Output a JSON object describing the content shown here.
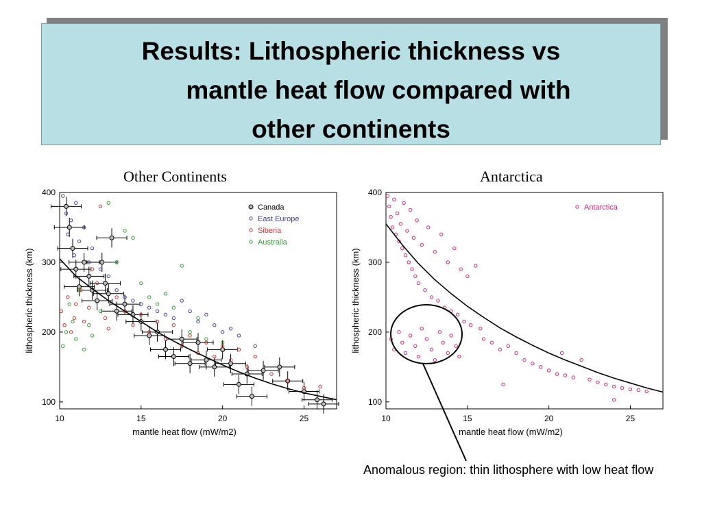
{
  "slide": {
    "title_lines": [
      "Results: Lithospheric thickness vs",
      "mantle heat flow compared with",
      "other continents"
    ],
    "left_label": "Other Continents",
    "right_label": "Antarctica",
    "annotation": "Anomalous region: thin lithosphere with low heat flow"
  },
  "chart_data": [
    {
      "type": "scatter",
      "title": "Other Continents",
      "xlabel": "mantle heat flow (mW/m2)",
      "ylabel": "lithospheric thickness (km)",
      "xlim": [
        10,
        27
      ],
      "ylim": [
        90,
        400
      ],
      "xticks": [
        10,
        15,
        20,
        25
      ],
      "yticks": [
        100,
        200,
        300,
        400
      ],
      "legend_position": "top-right",
      "series": [
        {
          "name": "Canada",
          "color": "#555555",
          "error_bars": true,
          "points": [
            [
              10.4,
              380
            ],
            [
              10.6,
              350
            ],
            [
              10.8,
              320
            ],
            [
              11.0,
              290
            ],
            [
              11.2,
              265
            ],
            [
              11.5,
              300
            ],
            [
              11.8,
              280
            ],
            [
              12.0,
              260
            ],
            [
              12.3,
              245
            ],
            [
              12.6,
              300
            ],
            [
              12.8,
              270
            ],
            [
              13.0,
              255
            ],
            [
              13.2,
              335
            ],
            [
              13.5,
              230
            ],
            [
              14.0,
              240
            ],
            [
              14.5,
              225
            ],
            [
              15.0,
              215
            ],
            [
              15.5,
              195
            ],
            [
              16.0,
              200
            ],
            [
              16.5,
              175
            ],
            [
              17.0,
              165
            ],
            [
              17.5,
              190
            ],
            [
              18.0,
              155
            ],
            [
              18.5,
              185
            ],
            [
              19.0,
              160
            ],
            [
              19.5,
              150
            ],
            [
              20.0,
              175
            ],
            [
              20.5,
              155
            ],
            [
              21.0,
              125
            ],
            [
              21.5,
              140
            ],
            [
              21.8,
              108
            ],
            [
              22.5,
              145
            ],
            [
              23.5,
              150
            ],
            [
              24.0,
              130
            ],
            [
              25.0,
              115
            ],
            [
              25.8,
              103
            ],
            [
              26.2,
              97
            ]
          ]
        },
        {
          "name": "East Europe",
          "color": "#4040a0",
          "error_bars": false,
          "points": [
            [
              10.2,
              395
            ],
            [
              10.4,
              370
            ],
            [
              10.5,
              340
            ],
            [
              10.7,
              360
            ],
            [
              10.9,
              310
            ],
            [
              11.0,
              385
            ],
            [
              11.2,
              330
            ],
            [
              11.5,
              350
            ],
            [
              11.8,
              300
            ],
            [
              12.0,
              320
            ],
            [
              12.5,
              290
            ],
            [
              13.0,
              280
            ],
            [
              13.5,
              260
            ],
            [
              14.0,
              250
            ],
            [
              14.5,
              245
            ],
            [
              15.0,
              240
            ],
            [
              15.5,
              235
            ],
            [
              16.0,
              230
            ],
            [
              16.5,
              225
            ],
            [
              17.0,
              220
            ],
            [
              17.5,
              245
            ],
            [
              18.0,
              230
            ],
            [
              18.5,
              215
            ],
            [
              19.0,
              225
            ],
            [
              19.5,
              210
            ],
            [
              20.0,
              200
            ],
            [
              20.5,
              205
            ],
            [
              21.0,
              195
            ],
            [
              22.0,
              180
            ]
          ]
        },
        {
          "name": "Siberia",
          "color": "#d03030",
          "error_bars": false,
          "points": [
            [
              10.1,
              230
            ],
            [
              10.3,
              210
            ],
            [
              10.5,
              250
            ],
            [
              10.7,
              200
            ],
            [
              10.9,
              220
            ],
            [
              11.0,
              240
            ],
            [
              11.3,
              260
            ],
            [
              11.5,
              215
            ],
            [
              11.8,
              235
            ],
            [
              12.0,
              290
            ],
            [
              12.3,
              270
            ],
            [
              12.5,
              380
            ],
            [
              12.8,
              220
            ],
            [
              13.0,
              205
            ],
            [
              13.5,
              250
            ],
            [
              14.0,
              230
            ],
            [
              14.5,
              210
            ],
            [
              15.0,
              225
            ],
            [
              15.5,
              200
            ],
            [
              16.0,
              215
            ],
            [
              16.5,
              190
            ],
            [
              17.0,
              210
            ],
            [
              17.5,
              180
            ],
            [
              18.0,
              195
            ],
            [
              18.5,
              170
            ],
            [
              19.0,
              185
            ],
            [
              19.5,
              165
            ],
            [
              20.0,
              180
            ],
            [
              20.5,
              160
            ],
            [
              21.0,
              175
            ],
            [
              21.5,
              150
            ],
            [
              22.0,
              165
            ],
            [
              23.0,
              140
            ],
            [
              24.0,
              130
            ],
            [
              25.0,
              120
            ],
            [
              26.0,
              122
            ]
          ]
        },
        {
          "name": "Australia",
          "color": "#30a030",
          "error_bars": false,
          "points": [
            [
              10.2,
              180
            ],
            [
              10.4,
              200
            ],
            [
              10.6,
              240
            ],
            [
              10.8,
              215
            ],
            [
              11.0,
              190
            ],
            [
              11.2,
              260
            ],
            [
              11.5,
              175
            ],
            [
              11.8,
              210
            ],
            [
              12.0,
              195
            ],
            [
              12.5,
              230
            ],
            [
              13.0,
              385
            ],
            [
              13.5,
              300
            ],
            [
              14.0,
              345
            ],
            [
              14.5,
              335
            ],
            [
              15.0,
              270
            ],
            [
              15.5,
              250
            ],
            [
              16.0,
              240
            ],
            [
              16.5,
              255
            ],
            [
              17.0,
              235
            ],
            [
              17.5,
              295
            ],
            [
              18.0,
              200
            ],
            [
              18.5,
              220
            ],
            [
              19.0,
              190
            ],
            [
              20.0,
              185
            ]
          ]
        }
      ],
      "fit_curve": [
        [
          10.0,
          305
        ],
        [
          11.0,
          280
        ],
        [
          12.0,
          262
        ],
        [
          13.0,
          245
        ],
        [
          14.0,
          230
        ],
        [
          15.0,
          215
        ],
        [
          16.0,
          200
        ],
        [
          17.0,
          187
        ],
        [
          18.0,
          175
        ],
        [
          19.0,
          164
        ],
        [
          20.0,
          153
        ],
        [
          21.0,
          143
        ],
        [
          22.0,
          134
        ],
        [
          23.0,
          126
        ],
        [
          24.0,
          119
        ],
        [
          25.0,
          113
        ],
        [
          26.0,
          108
        ],
        [
          27.0,
          103
        ]
      ]
    },
    {
      "type": "scatter",
      "title": "Antarctica",
      "xlabel": "mantle heat flow (mW/m2)",
      "ylabel": "lithospheric thickness (km)",
      "xlim": [
        10,
        27
      ],
      "ylim": [
        90,
        400
      ],
      "xticks": [
        10,
        15,
        20,
        25
      ],
      "yticks": [
        100,
        200,
        300,
        400
      ],
      "legend_position": "top-right",
      "series": [
        {
          "name": "Antarctica",
          "color": "#e0207a",
          "error_bars": false,
          "points": [
            [
              10.1,
              395
            ],
            [
              10.2,
              380
            ],
            [
              10.3,
              365
            ],
            [
              10.4,
              350
            ],
            [
              10.5,
              390
            ],
            [
              10.6,
              340
            ],
            [
              10.7,
              370
            ],
            [
              10.8,
              330
            ],
            [
              10.9,
              355
            ],
            [
              11.0,
              320
            ],
            [
              11.1,
              385
            ],
            [
              11.2,
              310
            ],
            [
              11.3,
              345
            ],
            [
              11.4,
              300
            ],
            [
              11.5,
              375
            ],
            [
              11.6,
              290
            ],
            [
              11.7,
              335
            ],
            [
              11.8,
              280
            ],
            [
              11.9,
              360
            ],
            [
              12.0,
              270
            ],
            [
              12.2,
              325
            ],
            [
              12.4,
              260
            ],
            [
              12.6,
              350
            ],
            [
              12.8,
              250
            ],
            [
              13.0,
              315
            ],
            [
              13.2,
              245
            ],
            [
              13.4,
              340
            ],
            [
              13.6,
              235
            ],
            [
              13.8,
              300
            ],
            [
              14.0,
              230
            ],
            [
              14.2,
              320
            ],
            [
              14.4,
              225
            ],
            [
              14.6,
              290
            ],
            [
              14.8,
              215
            ],
            [
              15.0,
              280
            ],
            [
              15.2,
              210
            ],
            [
              15.5,
              295
            ],
            [
              15.8,
              205
            ],
            [
              10.3,
              190
            ],
            [
              10.5,
              175
            ],
            [
              10.8,
              200
            ],
            [
              11.0,
              185
            ],
            [
              11.2,
              170
            ],
            [
              11.5,
              195
            ],
            [
              11.8,
              180
            ],
            [
              12.0,
              165
            ],
            [
              12.2,
              205
            ],
            [
              12.5,
              190
            ],
            [
              12.8,
              175
            ],
            [
              13.0,
              160
            ],
            [
              13.3,
              200
            ],
            [
              13.5,
              185
            ],
            [
              13.8,
              170
            ],
            [
              14.0,
              195
            ],
            [
              14.3,
              180
            ],
            [
              14.5,
              165
            ],
            [
              16.0,
              190
            ],
            [
              16.5,
              185
            ],
            [
              17.0,
              175
            ],
            [
              17.5,
              180
            ],
            [
              18.0,
              170
            ],
            [
              18.5,
              160
            ],
            [
              19.0,
              155
            ],
            [
              19.5,
              150
            ],
            [
              20.0,
              145
            ],
            [
              20.5,
              140
            ],
            [
              21.0,
              138
            ],
            [
              21.5,
              135
            ],
            [
              22.0,
              160
            ],
            [
              22.5,
              132
            ],
            [
              23.0,
              128
            ],
            [
              23.5,
              125
            ],
            [
              24.0,
              122
            ],
            [
              24.5,
              120
            ],
            [
              25.0,
              118
            ],
            [
              25.5,
              117
            ],
            [
              26.0,
              115
            ],
            [
              17.2,
              125
            ],
            [
              20.8,
              170
            ],
            [
              24.0,
              103
            ]
          ]
        }
      ],
      "fit_curve": [
        [
          10.0,
          355
        ],
        [
          11.0,
          325
        ],
        [
          12.0,
          298
        ],
        [
          13.0,
          275
        ],
        [
          14.0,
          255
        ],
        [
          15.0,
          237
        ],
        [
          16.0,
          221
        ],
        [
          17.0,
          206
        ],
        [
          18.0,
          193
        ],
        [
          19.0,
          181
        ],
        [
          20.0,
          170
        ],
        [
          21.0,
          160
        ],
        [
          22.0,
          151
        ],
        [
          23.0,
          142
        ],
        [
          24.0,
          134
        ],
        [
          25.0,
          127
        ],
        [
          26.0,
          120
        ],
        [
          27.0,
          114
        ]
      ]
    }
  ]
}
